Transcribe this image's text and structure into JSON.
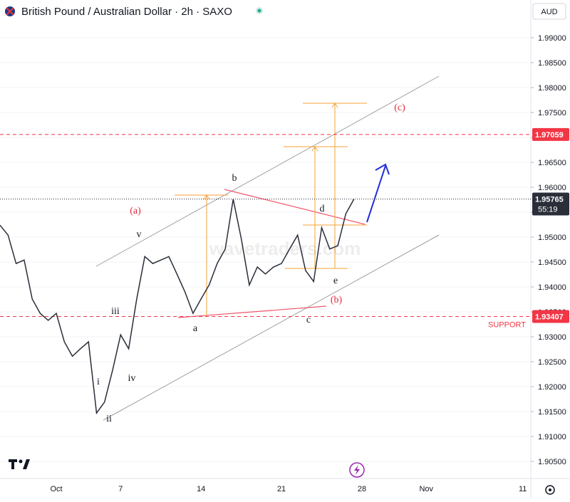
{
  "chart_data": {
    "type": "line",
    "title": "British Pound / Australian Dollar · 2h · SAXO",
    "currency": "AUD",
    "watermark": "wavetraders.com",
    "categories": [
      null,
      null,
      null,
      null,
      null,
      null,
      null,
      "Oct",
      null,
      null,
      null,
      null,
      null,
      null,
      null,
      "7",
      null,
      null,
      null,
      null,
      null,
      null,
      null,
      null,
      null,
      "14",
      null,
      null,
      null,
      null,
      null,
      null,
      null,
      null,
      null,
      "21",
      null,
      null,
      null,
      null,
      null,
      null,
      null,
      null,
      null,
      "28",
      null,
      null,
      null,
      null,
      null,
      null,
      null,
      "Nov",
      null,
      null,
      null,
      null,
      null,
      null,
      null,
      null,
      null,
      null,
      null,
      "11"
    ],
    "series": [
      {
        "name": "GBPAUD",
        "color": "#2a2e39",
        "values": [
          1.9524,
          1.9504,
          1.9447,
          1.9454,
          1.9376,
          1.9347,
          1.9333,
          1.9347,
          1.929,
          1.9261,
          1.9276,
          1.929,
          1.9147,
          1.9169,
          1.9233,
          1.9304,
          1.9276,
          1.9376,
          1.9461,
          1.9447,
          1.9454,
          1.9461,
          1.9426,
          1.939,
          1.9347,
          1.9376,
          1.9404,
          1.9447,
          1.9476,
          1.9576,
          1.9497,
          1.9404,
          1.944,
          1.9426,
          1.944,
          1.9447,
          1.9476,
          1.9504,
          1.9433,
          1.9411,
          1.9519,
          1.9476,
          1.9483,
          1.9547,
          1.9576,
          null,
          null,
          null,
          null,
          null,
          null,
          null,
          null,
          null,
          null,
          null,
          null,
          null,
          null,
          null,
          null,
          null,
          null,
          null,
          null,
          null
        ]
      }
    ],
    "ylim": [
      1.90157,
      1.99757
    ],
    "yticks": [
      {
        "value": 1.905,
        "label": "1.90500"
      },
      {
        "value": 1.91,
        "label": "1.91000"
      },
      {
        "value": 1.915,
        "label": "1.91500"
      },
      {
        "value": 1.92,
        "label": "1.92000"
      },
      {
        "value": 1.925,
        "label": "1.92500"
      },
      {
        "value": 1.93,
        "label": "1.93000"
      },
      {
        "value": 1.935,
        "label": "1.93500"
      },
      {
        "value": 1.94,
        "label": "1.94000"
      },
      {
        "value": 1.945,
        "label": "1.94500"
      },
      {
        "value": 1.95,
        "label": "1.95000"
      },
      {
        "value": 1.955,
        "label": "1.95500"
      },
      {
        "value": 1.96,
        "label": "1.96000"
      },
      {
        "value": 1.965,
        "label": "1.96500"
      },
      {
        "value": 1.97,
        "label": "1.97000"
      },
      {
        "value": 1.975,
        "label": "1.97500"
      },
      {
        "value": 1.98,
        "label": "1.98000"
      },
      {
        "value": 1.985,
        "label": "1.98500"
      },
      {
        "value": 1.99,
        "label": "1.99000"
      }
    ],
    "resistance": {
      "value": 1.97059,
      "color": "#f23645"
    },
    "support": {
      "value": 1.93407,
      "label": "SUPPORT",
      "color": "#f23645"
    },
    "last_price": {
      "value": 1.95765,
      "countdown": "55:19",
      "color": "#2a2e39"
    },
    "annotations": [
      "(a)",
      "(b)",
      "(c)",
      "a",
      "b",
      "c",
      "d",
      "e",
      "i",
      "ii",
      "iii",
      "iv",
      "v"
    ]
  }
}
